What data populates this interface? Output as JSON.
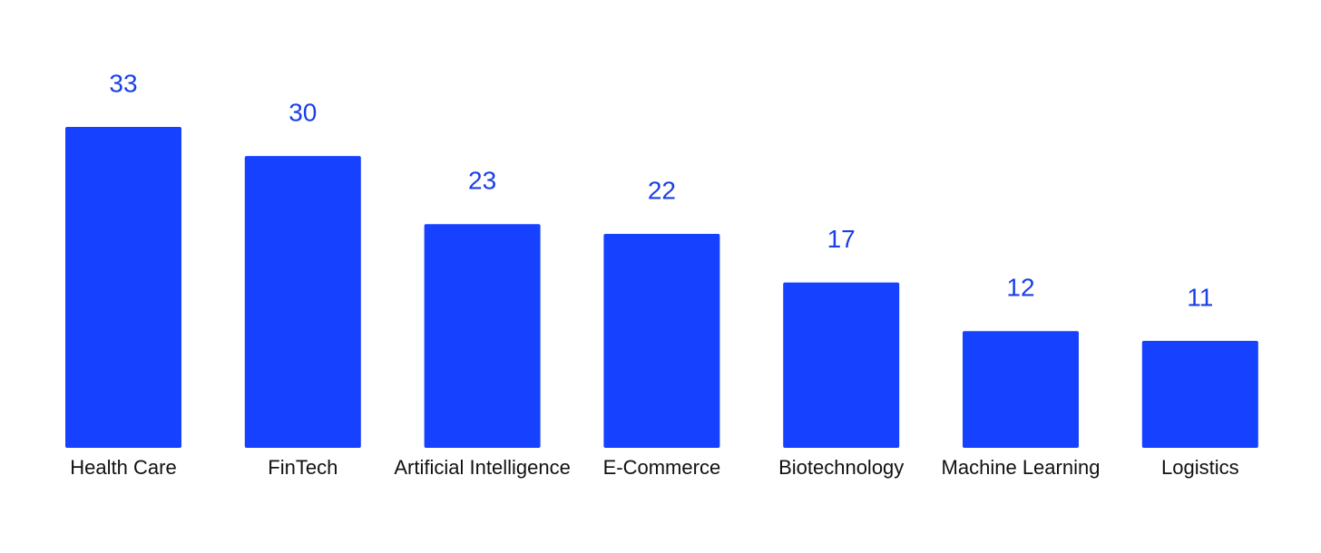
{
  "chart_data": {
    "type": "bar",
    "categories": [
      "Health Care",
      "FinTech",
      "Artificial Intelligence",
      "E-Commerce",
      "Biotechnology",
      "Machine Learning",
      "Logistics"
    ],
    "values": [
      33,
      30,
      23,
      22,
      17,
      12,
      11
    ],
    "color": "#1641ff",
    "value_label_color": "#1a3fe6"
  }
}
